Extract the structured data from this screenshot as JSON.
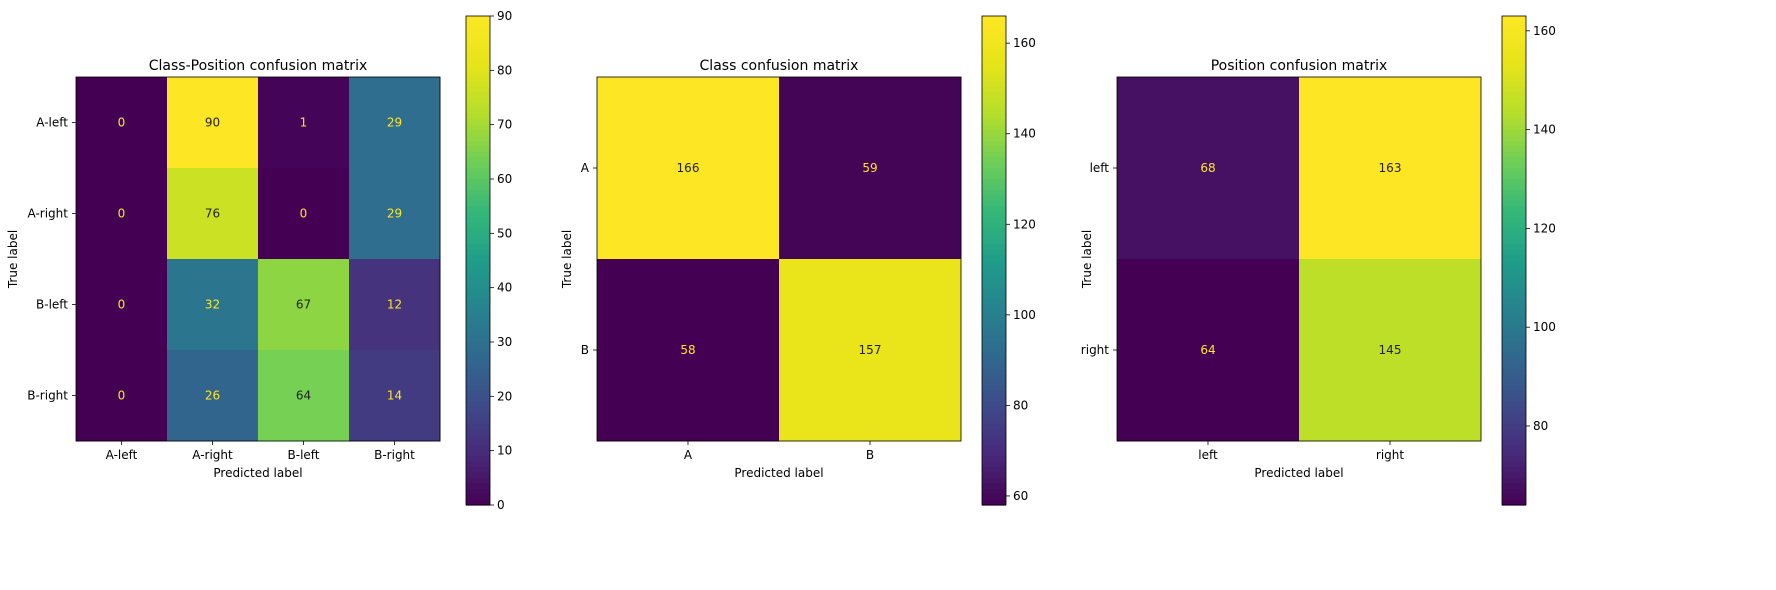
{
  "chart_data": [
    {
      "type": "heatmap",
      "title": "Class-Position confusion matrix",
      "xlabel": "Predicted label",
      "ylabel": "True label",
      "x_categories": [
        "A-left",
        "A-right",
        "B-left",
        "B-right"
      ],
      "y_categories": [
        "A-left",
        "A-right",
        "B-left",
        "B-right"
      ],
      "values": [
        [
          0,
          90,
          1,
          29
        ],
        [
          0,
          76,
          0,
          29
        ],
        [
          0,
          32,
          67,
          12
        ],
        [
          0,
          26,
          64,
          14
        ]
      ],
      "colormap": "viridis",
      "vmin": 0,
      "vmax": 90,
      "colorbar_ticks": [
        0,
        10,
        20,
        30,
        40,
        50,
        60,
        70,
        80,
        90
      ]
    },
    {
      "type": "heatmap",
      "title": "Class confusion matrix",
      "xlabel": "Predicted label",
      "ylabel": "True label",
      "x_categories": [
        "A",
        "B"
      ],
      "y_categories": [
        "A",
        "B"
      ],
      "values": [
        [
          166,
          59
        ],
        [
          58,
          157
        ]
      ],
      "colormap": "viridis",
      "vmin": 58,
      "vmax": 166,
      "colorbar_ticks": [
        60,
        80,
        100,
        120,
        140,
        160
      ]
    },
    {
      "type": "heatmap",
      "title": "Position confusion matrix",
      "xlabel": "Predicted label",
      "ylabel": "True label",
      "x_categories": [
        "left",
        "right"
      ],
      "y_categories": [
        "left",
        "right"
      ],
      "values": [
        [
          68,
          163
        ],
        [
          64,
          145
        ]
      ],
      "colormap": "viridis",
      "vmin": 64,
      "vmax": 163,
      "colorbar_ticks": [
        80,
        100,
        120,
        140,
        160
      ]
    }
  ]
}
